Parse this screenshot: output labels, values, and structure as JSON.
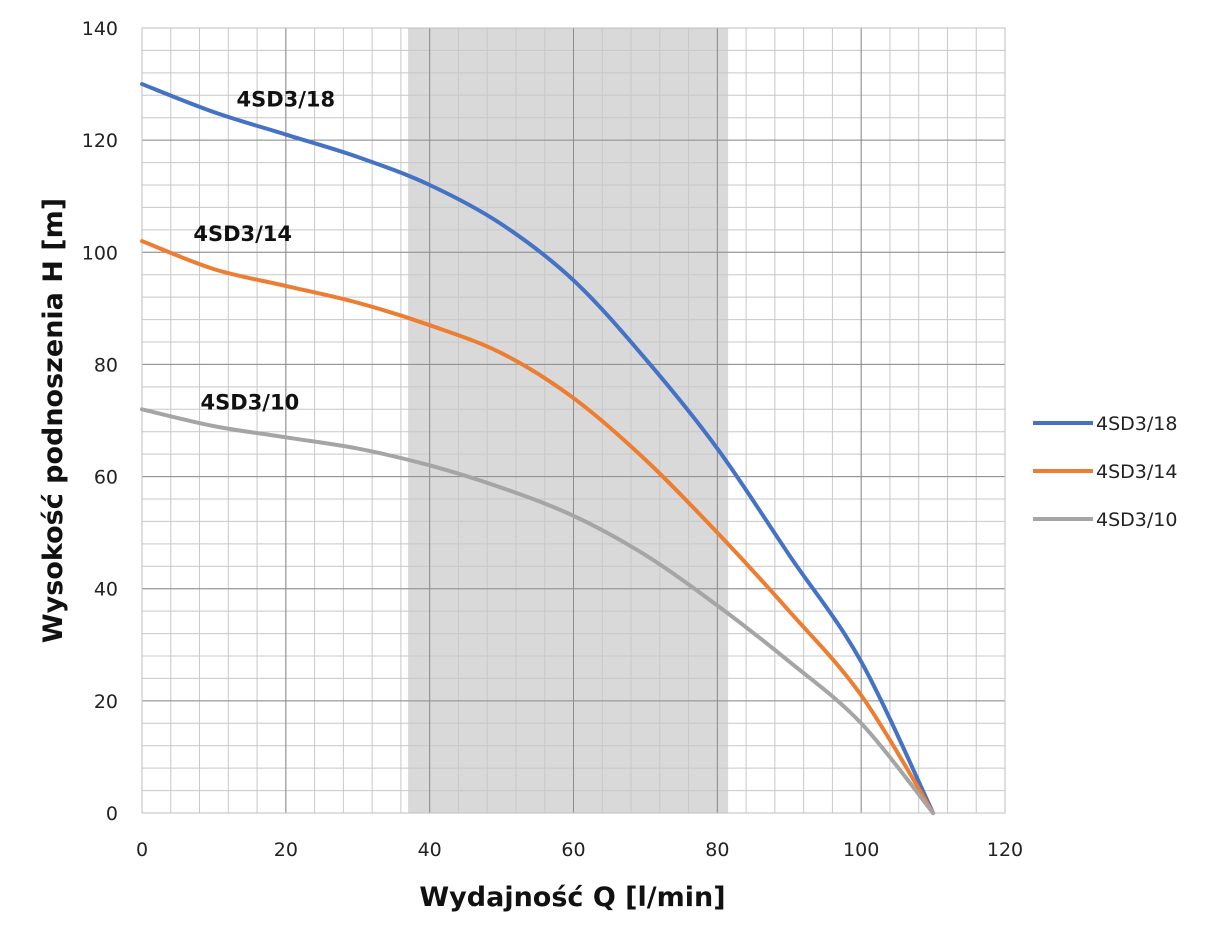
{
  "chart_data": {
    "type": "line",
    "xlabel": "Wydajność Q [l/min]",
    "ylabel": "Wysokość podnoszenia H [m]",
    "xlim": [
      0,
      120
    ],
    "ylim": [
      0,
      140
    ],
    "x_ticks": [
      "0",
      "20",
      "40",
      "60",
      "80",
      "100",
      "120"
    ],
    "y_ticks": [
      "0",
      "20",
      "40",
      "60",
      "80",
      "100",
      "120",
      "140"
    ],
    "grid": true,
    "legend": "right",
    "highlight_range": [
      37,
      81.5
    ],
    "series": [
      {
        "name": "4SD3/18",
        "color": "#4472C4",
        "label_at": [
          20,
          126
        ],
        "x": [
          0,
          10,
          20,
          30,
          40,
          50,
          60,
          70,
          80,
          90,
          100,
          110
        ],
        "y": [
          130,
          125,
          121,
          117,
          112,
          105,
          95,
          81,
          65,
          46,
          27,
          0
        ]
      },
      {
        "name": "4SD3/14",
        "color": "#ED7D31",
        "label_at": [
          14,
          102
        ],
        "x": [
          0,
          10,
          20,
          30,
          40,
          50,
          60,
          70,
          80,
          90,
          100,
          110
        ],
        "y": [
          102,
          97,
          94,
          91,
          87,
          82,
          74,
          63,
          50,
          36,
          21,
          0
        ]
      },
      {
        "name": "4SD3/10",
        "color": "#A5A5A5",
        "label_at": [
          15,
          72
        ],
        "x": [
          0,
          10,
          20,
          30,
          40,
          50,
          60,
          70,
          80,
          90,
          100,
          110
        ],
        "y": [
          72,
          69,
          67,
          65,
          62,
          58,
          53,
          46,
          37,
          27,
          16,
          0
        ]
      }
    ]
  }
}
